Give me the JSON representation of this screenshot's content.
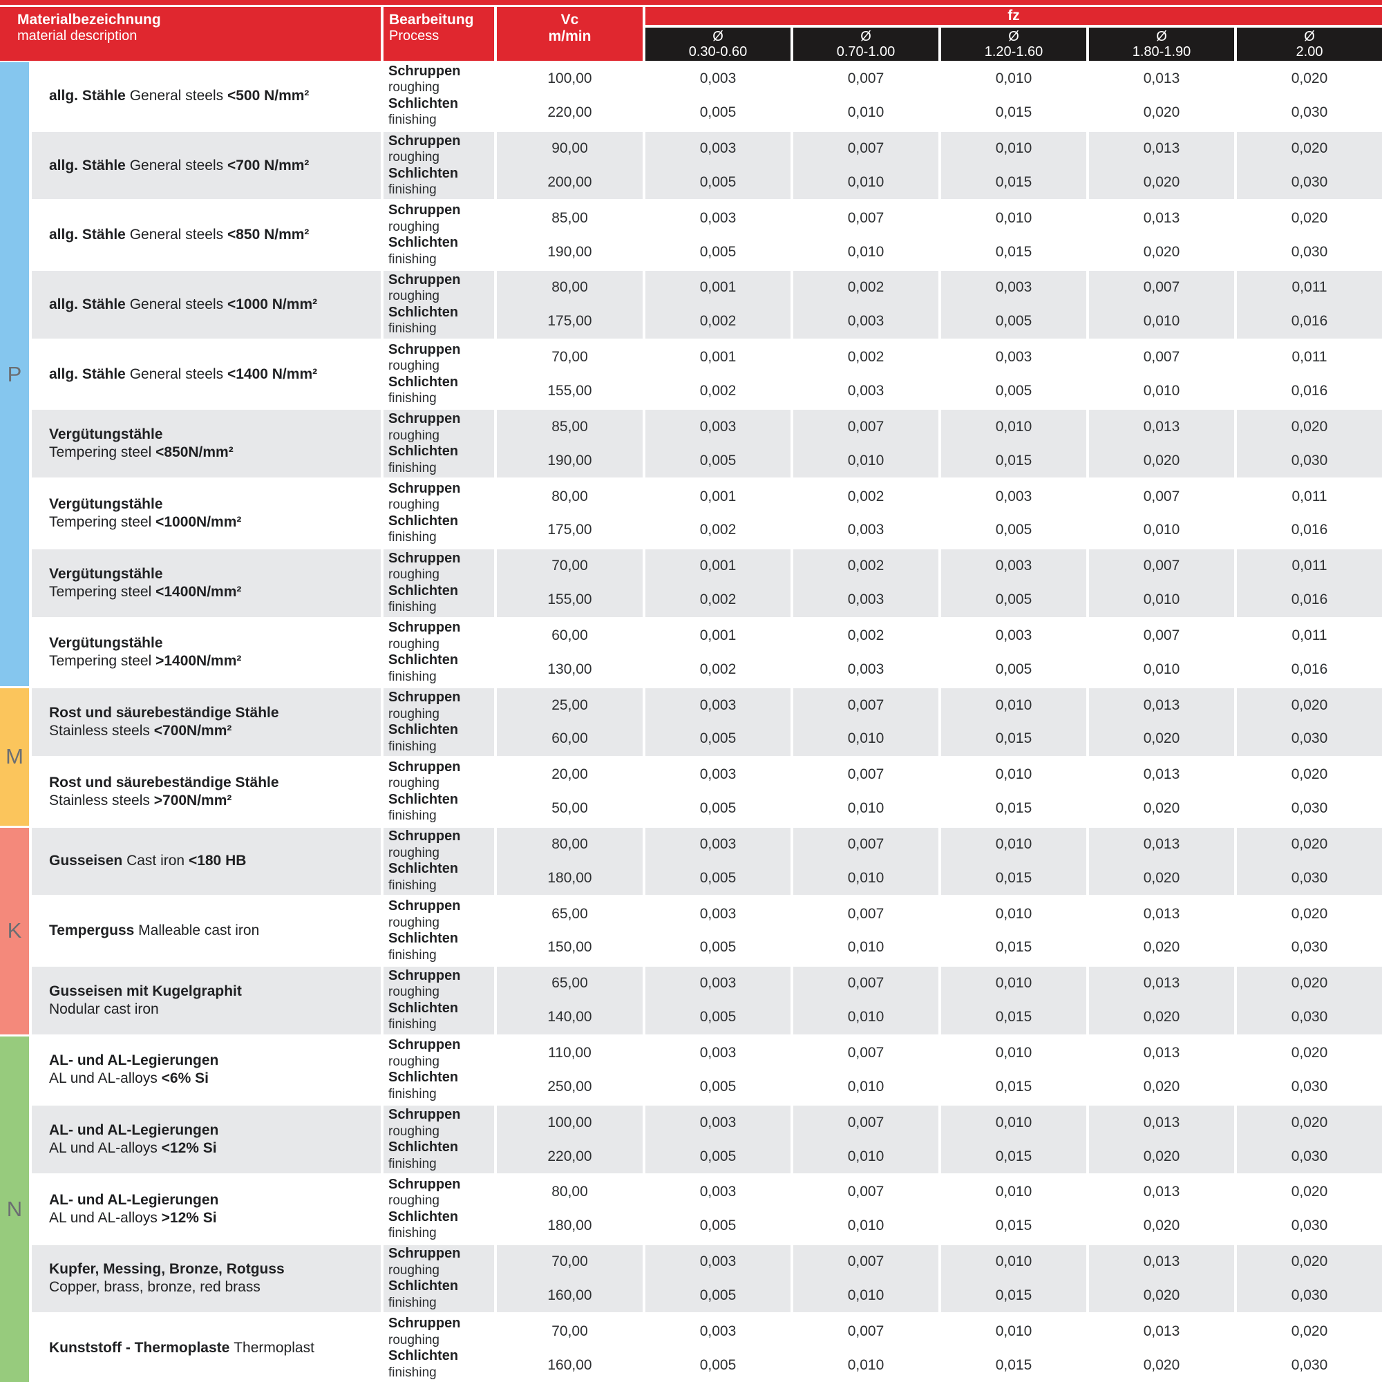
{
  "colors": {
    "header_red": "#e0272f",
    "subheader_black": "#1d1b1b",
    "row_alt_gray": "#e7e8ea",
    "group_p": "#85c6ee",
    "group_m": "#fbc55c",
    "group_k": "#f4897b",
    "group_n": "#97cb7d",
    "letter_gray": "#6b6e72"
  },
  "header": {
    "material_title": "Materialbezeichnung",
    "material_subtitle": "material description",
    "process_title": "Bearbeitung",
    "process_subtitle": "Process",
    "vc_title": "Vc",
    "vc_unit": "m/min",
    "fz_title": "fz",
    "diameter_symbol": "Ø",
    "diameter_ranges": [
      "0.30-0.60",
      "0.70-1.00",
      "1.20-1.60",
      "1.80-1.90",
      "2.00"
    ]
  },
  "process_labels": {
    "roughing_de": "Schruppen",
    "roughing_en": "roughing",
    "finishing_de": "Schlichten",
    "finishing_en": "finishing"
  },
  "groups": [
    {
      "letter": "P",
      "color": "#85c6ee",
      "rows": 9
    },
    {
      "letter": "M",
      "color": "#fbc55c",
      "rows": 2
    },
    {
      "letter": "K",
      "color": "#f4897b",
      "rows": 3
    },
    {
      "letter": "N",
      "color": "#97cb7d",
      "rows": 5
    }
  ],
  "rows": [
    {
      "material_lines": [
        [
          {
            "text": "allg. Stähle ",
            "bold": true
          },
          {
            "text": "General steels ",
            "bold": false
          },
          {
            "text": "<500 N/mm²",
            "bold": true
          }
        ]
      ],
      "vc": {
        "roughing": "100,00",
        "finishing": "220,00"
      },
      "fz": {
        "roughing": [
          "0,003",
          "0,007",
          "0,010",
          "0,013",
          "0,020"
        ],
        "finishing": [
          "0,005",
          "0,010",
          "0,015",
          "0,020",
          "0,030"
        ]
      }
    },
    {
      "material_lines": [
        [
          {
            "text": "allg. Stähle ",
            "bold": true
          },
          {
            "text": "General steels ",
            "bold": false
          },
          {
            "text": "<700 N/mm²",
            "bold": true
          }
        ]
      ],
      "vc": {
        "roughing": "90,00",
        "finishing": "200,00"
      },
      "fz": {
        "roughing": [
          "0,003",
          "0,007",
          "0,010",
          "0,013",
          "0,020"
        ],
        "finishing": [
          "0,005",
          "0,010",
          "0,015",
          "0,020",
          "0,030"
        ]
      }
    },
    {
      "material_lines": [
        [
          {
            "text": "allg. Stähle ",
            "bold": true
          },
          {
            "text": "General steels ",
            "bold": false
          },
          {
            "text": "<850 N/mm²",
            "bold": true
          }
        ]
      ],
      "vc": {
        "roughing": "85,00",
        "finishing": "190,00"
      },
      "fz": {
        "roughing": [
          "0,003",
          "0,007",
          "0,010",
          "0,013",
          "0,020"
        ],
        "finishing": [
          "0,005",
          "0,010",
          "0,015",
          "0,020",
          "0,030"
        ]
      }
    },
    {
      "material_lines": [
        [
          {
            "text": "allg. Stähle ",
            "bold": true
          },
          {
            "text": "General steels ",
            "bold": false
          },
          {
            "text": "<1000 N/mm²",
            "bold": true
          }
        ]
      ],
      "vc": {
        "roughing": "80,00",
        "finishing": "175,00"
      },
      "fz": {
        "roughing": [
          "0,001",
          "0,002",
          "0,003",
          "0,007",
          "0,011"
        ],
        "finishing": [
          "0,002",
          "0,003",
          "0,005",
          "0,010",
          "0,016"
        ]
      }
    },
    {
      "material_lines": [
        [
          {
            "text": "allg. Stähle ",
            "bold": true
          },
          {
            "text": "General steels ",
            "bold": false
          },
          {
            "text": "<1400 N/mm²",
            "bold": true
          }
        ]
      ],
      "vc": {
        "roughing": "70,00",
        "finishing": "155,00"
      },
      "fz": {
        "roughing": [
          "0,001",
          "0,002",
          "0,003",
          "0,007",
          "0,011"
        ],
        "finishing": [
          "0,002",
          "0,003",
          "0,005",
          "0,010",
          "0,016"
        ]
      }
    },
    {
      "material_lines": [
        [
          {
            "text": "Vergütungstähle",
            "bold": true
          }
        ],
        [
          {
            "text": "Tempering steel ",
            "bold": false
          },
          {
            "text": "<850N/mm²",
            "bold": true
          }
        ]
      ],
      "vc": {
        "roughing": "85,00",
        "finishing": "190,00"
      },
      "fz": {
        "roughing": [
          "0,003",
          "0,007",
          "0,010",
          "0,013",
          "0,020"
        ],
        "finishing": [
          "0,005",
          "0,010",
          "0,015",
          "0,020",
          "0,030"
        ]
      }
    },
    {
      "material_lines": [
        [
          {
            "text": "Vergütungstähle",
            "bold": true
          }
        ],
        [
          {
            "text": "Tempering steel ",
            "bold": false
          },
          {
            "text": "<1000N/mm²",
            "bold": true
          }
        ]
      ],
      "vc": {
        "roughing": "80,00",
        "finishing": "175,00"
      },
      "fz": {
        "roughing": [
          "0,001",
          "0,002",
          "0,003",
          "0,007",
          "0,011"
        ],
        "finishing": [
          "0,002",
          "0,003",
          "0,005",
          "0,010",
          "0,016"
        ]
      }
    },
    {
      "material_lines": [
        [
          {
            "text": "Vergütungstähle",
            "bold": true
          }
        ],
        [
          {
            "text": "Tempering steel ",
            "bold": false
          },
          {
            "text": "<1400N/mm²",
            "bold": true
          }
        ]
      ],
      "vc": {
        "roughing": "70,00",
        "finishing": "155,00"
      },
      "fz": {
        "roughing": [
          "0,001",
          "0,002",
          "0,003",
          "0,007",
          "0,011"
        ],
        "finishing": [
          "0,002",
          "0,003",
          "0,005",
          "0,010",
          "0,016"
        ]
      }
    },
    {
      "material_lines": [
        [
          {
            "text": "Vergütungstähle",
            "bold": true
          }
        ],
        [
          {
            "text": "Tempering steel ",
            "bold": false
          },
          {
            "text": ">1400N/mm²",
            "bold": true
          }
        ]
      ],
      "vc": {
        "roughing": "60,00",
        "finishing": "130,00"
      },
      "fz": {
        "roughing": [
          "0,001",
          "0,002",
          "0,003",
          "0,007",
          "0,011"
        ],
        "finishing": [
          "0,002",
          "0,003",
          "0,005",
          "0,010",
          "0,016"
        ]
      }
    },
    {
      "material_lines": [
        [
          {
            "text": "Rost und säurebeständige Stähle",
            "bold": true
          }
        ],
        [
          {
            "text": "Stainless steels ",
            "bold": false
          },
          {
            "text": "<700N/mm²",
            "bold": true
          }
        ]
      ],
      "vc": {
        "roughing": "25,00",
        "finishing": "60,00"
      },
      "fz": {
        "roughing": [
          "0,003",
          "0,007",
          "0,010",
          "0,013",
          "0,020"
        ],
        "finishing": [
          "0,005",
          "0,010",
          "0,015",
          "0,020",
          "0,030"
        ]
      }
    },
    {
      "material_lines": [
        [
          {
            "text": "Rost und säurebeständige Stähle",
            "bold": true
          }
        ],
        [
          {
            "text": "Stainless steels ",
            "bold": false
          },
          {
            "text": ">700N/mm²",
            "bold": true
          }
        ]
      ],
      "vc": {
        "roughing": "20,00",
        "finishing": "50,00"
      },
      "fz": {
        "roughing": [
          "0,003",
          "0,007",
          "0,010",
          "0,013",
          "0,020"
        ],
        "finishing": [
          "0,005",
          "0,010",
          "0,015",
          "0,020",
          "0,030"
        ]
      }
    },
    {
      "material_lines": [
        [
          {
            "text": "Gusseisen ",
            "bold": true
          },
          {
            "text": "Cast iron ",
            "bold": false
          },
          {
            "text": "<180 HB",
            "bold": true
          }
        ]
      ],
      "vc": {
        "roughing": "80,00",
        "finishing": "180,00"
      },
      "fz": {
        "roughing": [
          "0,003",
          "0,007",
          "0,010",
          "0,013",
          "0,020"
        ],
        "finishing": [
          "0,005",
          "0,010",
          "0,015",
          "0,020",
          "0,030"
        ]
      }
    },
    {
      "material_lines": [
        [
          {
            "text": "Temperguss ",
            "bold": true
          },
          {
            "text": "Malleable cast iron",
            "bold": false
          }
        ]
      ],
      "vc": {
        "roughing": "65,00",
        "finishing": "150,00"
      },
      "fz": {
        "roughing": [
          "0,003",
          "0,007",
          "0,010",
          "0,013",
          "0,020"
        ],
        "finishing": [
          "0,005",
          "0,010",
          "0,015",
          "0,020",
          "0,030"
        ]
      }
    },
    {
      "material_lines": [
        [
          {
            "text": "Gusseisen mit Kugelgraphit",
            "bold": true
          }
        ],
        [
          {
            "text": "Nodular cast iron",
            "bold": false
          }
        ]
      ],
      "vc": {
        "roughing": "65,00",
        "finishing": "140,00"
      },
      "fz": {
        "roughing": [
          "0,003",
          "0,007",
          "0,010",
          "0,013",
          "0,020"
        ],
        "finishing": [
          "0,005",
          "0,010",
          "0,015",
          "0,020",
          "0,030"
        ]
      }
    },
    {
      "material_lines": [
        [
          {
            "text": "AL- und AL-Legierungen",
            "bold": true
          }
        ],
        [
          {
            "text": "AL und AL-alloys ",
            "bold": false
          },
          {
            "text": "<6% Si",
            "bold": true
          }
        ]
      ],
      "vc": {
        "roughing": "110,00",
        "finishing": "250,00"
      },
      "fz": {
        "roughing": [
          "0,003",
          "0,007",
          "0,010",
          "0,013",
          "0,020"
        ],
        "finishing": [
          "0,005",
          "0,010",
          "0,015",
          "0,020",
          "0,030"
        ]
      }
    },
    {
      "material_lines": [
        [
          {
            "text": "AL- und AL-Legierungen",
            "bold": true
          }
        ],
        [
          {
            "text": "AL und AL-alloys ",
            "bold": false
          },
          {
            "text": "<12% Si",
            "bold": true
          }
        ]
      ],
      "vc": {
        "roughing": "100,00",
        "finishing": "220,00"
      },
      "fz": {
        "roughing": [
          "0,003",
          "0,007",
          "0,010",
          "0,013",
          "0,020"
        ],
        "finishing": [
          "0,005",
          "0,010",
          "0,015",
          "0,020",
          "0,030"
        ]
      }
    },
    {
      "material_lines": [
        [
          {
            "text": "AL- und AL-Legierungen",
            "bold": true
          }
        ],
        [
          {
            "text": "AL und AL-alloys ",
            "bold": false
          },
          {
            "text": ">12% Si",
            "bold": true
          }
        ]
      ],
      "vc": {
        "roughing": "80,00",
        "finishing": "180,00"
      },
      "fz": {
        "roughing": [
          "0,003",
          "0,007",
          "0,010",
          "0,013",
          "0,020"
        ],
        "finishing": [
          "0,005",
          "0,010",
          "0,015",
          "0,020",
          "0,030"
        ]
      }
    },
    {
      "material_lines": [
        [
          {
            "text": "Kupfer, Messing, Bronze, Rotguss",
            "bold": true
          }
        ],
        [
          {
            "text": "Copper, brass, bronze, red brass",
            "bold": false
          }
        ]
      ],
      "vc": {
        "roughing": "70,00",
        "finishing": "160,00"
      },
      "fz": {
        "roughing": [
          "0,003",
          "0,007",
          "0,010",
          "0,013",
          "0,020"
        ],
        "finishing": [
          "0,005",
          "0,010",
          "0,015",
          "0,020",
          "0,030"
        ]
      }
    },
    {
      "material_lines": [
        [
          {
            "text": "Kunststoff - Thermoplaste ",
            "bold": true
          },
          {
            "text": "Thermoplast",
            "bold": false
          }
        ]
      ],
      "vc": {
        "roughing": "70,00",
        "finishing": "160,00"
      },
      "fz": {
        "roughing": [
          "0,003",
          "0,007",
          "0,010",
          "0,013",
          "0,020"
        ],
        "finishing": [
          "0,005",
          "0,010",
          "0,015",
          "0,020",
          "0,030"
        ]
      }
    }
  ]
}
